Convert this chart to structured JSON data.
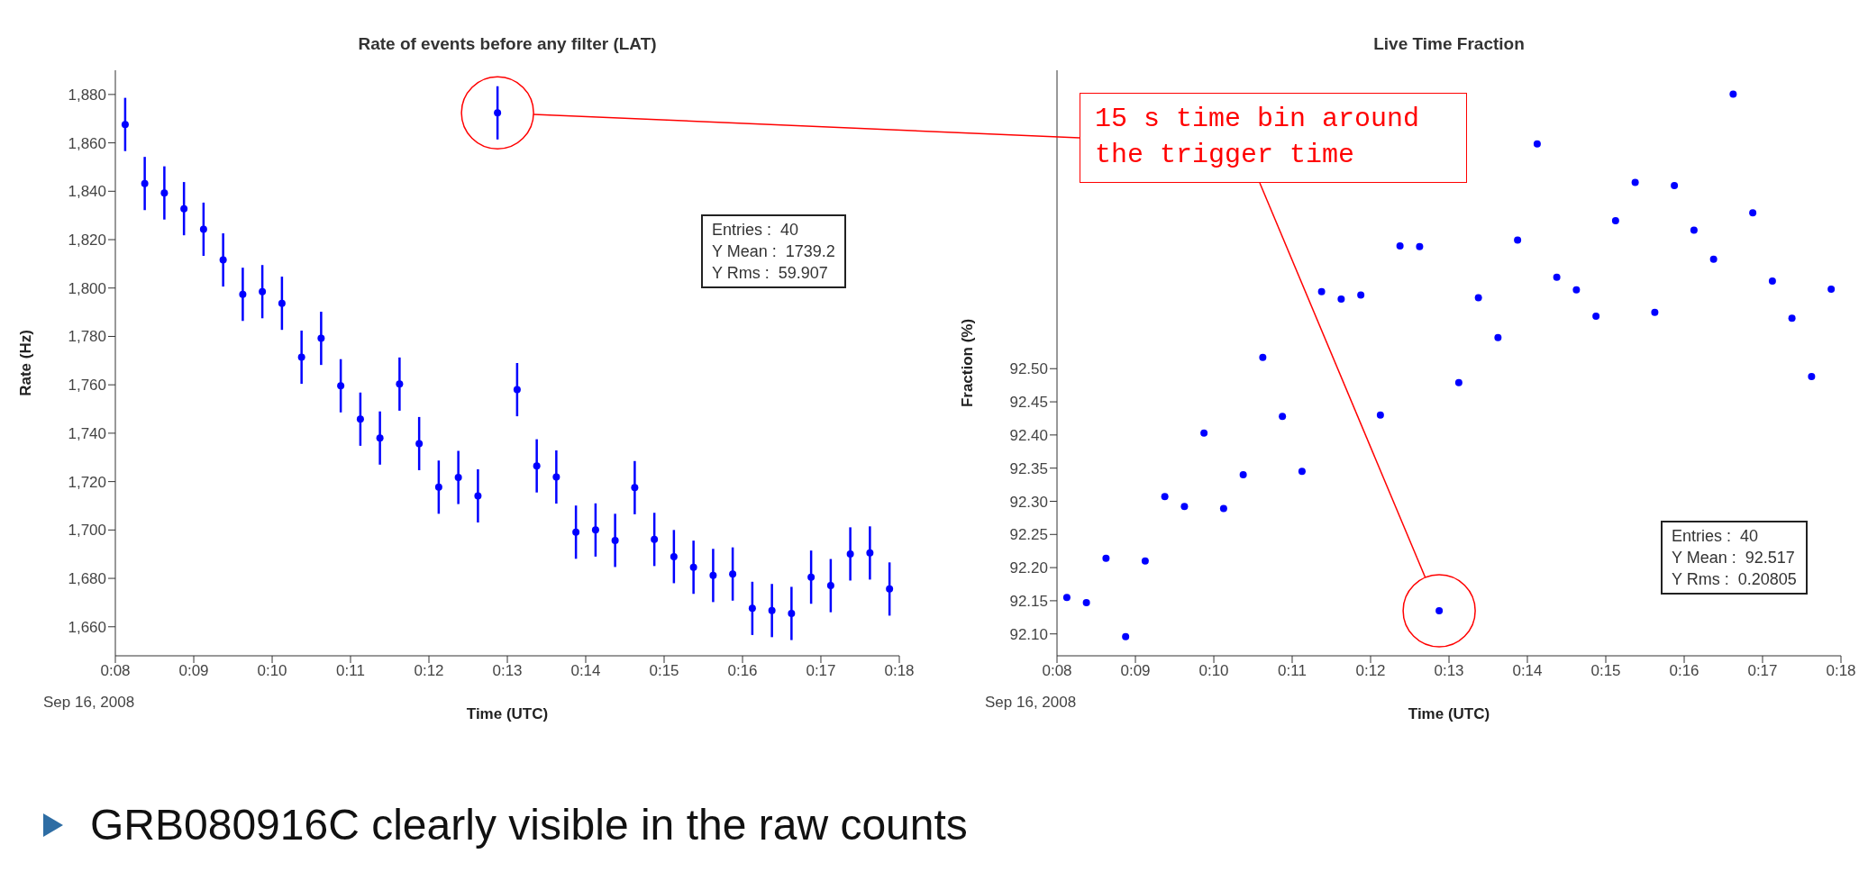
{
  "chart_data": [
    {
      "type": "scatter",
      "title": "Rate of events before any filter (LAT)",
      "xlabel": "Time (UTC)",
      "ylabel": "Rate (Hz)",
      "marker": "circle",
      "x": [
        0.13542,
        0.13958,
        0.14375,
        0.14792,
        0.15208,
        0.15625,
        0.16042,
        0.16458,
        0.16875,
        0.17292,
        0.17708,
        0.18125,
        0.18542,
        0.18958,
        0.19375,
        0.19792,
        0.20208,
        0.20625,
        0.21042,
        0.21458,
        0.21875,
        0.22292,
        0.22708,
        0.23125,
        0.23542,
        0.23958,
        0.24375,
        0.24792,
        0.25208,
        0.25625,
        0.26042,
        0.26458,
        0.26875,
        0.27292,
        0.27708,
        0.28125,
        0.28542,
        0.28958,
        0.29375,
        0.29792
      ],
      "series": [
        {
          "color": "#0000ff",
          "values": [
            1867.6,
            1843.2,
            1839.3,
            1832.8,
            1824.3,
            1811.6,
            1797.4,
            1798.5,
            1793.7,
            1771.4,
            1779.2,
            1759.6,
            1745.8,
            1738.0,
            1760.3,
            1735.7,
            1717.7,
            1721.7,
            1714.1,
            1872.4,
            1758.0,
            1726.5,
            1721.9,
            1699.1,
            1700.0,
            1695.7,
            1717.5,
            1696.1,
            1689.0,
            1684.6,
            1681.2,
            1681.8,
            1667.6,
            1666.7,
            1665.5,
            1680.5,
            1677.0,
            1690.1,
            1690.5,
            1675.6
          ],
          "errors": [
            11,
            11,
            11,
            11,
            11,
            11,
            11,
            11,
            11,
            11,
            11,
            11,
            11,
            11,
            11,
            11,
            11,
            11,
            11,
            11,
            11,
            11,
            11,
            11,
            11,
            11,
            11,
            11,
            11,
            11,
            11,
            11,
            11,
            11,
            11,
            11,
            11,
            11,
            11,
            11
          ]
        }
      ],
      "xlim": [
        0.13333,
        0.3
      ],
      "xticks": [
        {
          "value": 0.13333,
          "label": "0:08"
        },
        {
          "value": 0.15,
          "label": "0:09"
        },
        {
          "value": 0.16667,
          "label": "0:10"
        },
        {
          "value": 0.18333,
          "label": "0:11"
        },
        {
          "value": 0.2,
          "label": "0:12"
        },
        {
          "value": 0.21667,
          "label": "0:13"
        },
        {
          "value": 0.23333,
          "label": "0:14"
        },
        {
          "value": 0.25,
          "label": "0:15"
        },
        {
          "value": 0.26667,
          "label": "0:16"
        },
        {
          "value": 0.28333,
          "label": "0:17"
        },
        {
          "value": 0.3,
          "label": "0:18"
        }
      ],
      "ylim": [
        1648,
        1890
      ],
      "yticks": [
        {
          "value": 1660,
          "label": "1,660"
        },
        {
          "value": 1680,
          "label": "1,680"
        },
        {
          "value": 1700,
          "label": "1,700"
        },
        {
          "value": 1720,
          "label": "1,720"
        },
        {
          "value": 1740,
          "label": "1,740"
        },
        {
          "value": 1760,
          "label": "1,760"
        },
        {
          "value": 1780,
          "label": "1,780"
        },
        {
          "value": 1800,
          "label": "1,800"
        },
        {
          "value": 1820,
          "label": "1,820"
        },
        {
          "value": 1840,
          "label": "1,840"
        },
        {
          "value": 1860,
          "label": "1,860"
        },
        {
          "value": 1880,
          "label": "1,880"
        }
      ],
      "annotations": [
        "Entries :  40",
        "Y Mean :  1739.2",
        "Y Rms :  59.907",
        "Sep 16, 2008",
        "15 s time bin around the trigger time"
      ]
    },
    {
      "type": "scatter",
      "title": "Live Time Fraction",
      "xlabel": "Time (UTC)",
      "ylabel": "Fraction (%)",
      "marker": "circle",
      "x": [
        0.13542,
        0.13958,
        0.14375,
        0.14792,
        0.15208,
        0.15625,
        0.16042,
        0.16458,
        0.16875,
        0.17292,
        0.17708,
        0.18125,
        0.18542,
        0.18958,
        0.19375,
        0.19792,
        0.20208,
        0.20625,
        0.21042,
        0.21458,
        0.21875,
        0.22292,
        0.22708,
        0.23125,
        0.23542,
        0.23958,
        0.24375,
        0.24792,
        0.25208,
        0.25625,
        0.26042,
        0.26458,
        0.26875,
        0.27292,
        0.27708,
        0.28125,
        0.28542,
        0.28958,
        0.29375,
        0.29792
      ],
      "series": [
        {
          "color": "#0000ff",
          "values": [
            92.155,
            92.147,
            92.214,
            92.096,
            92.21,
            92.307,
            92.292,
            92.403,
            92.289,
            92.34,
            92.517,
            92.428,
            92.345,
            92.616,
            92.605,
            92.611,
            92.43,
            92.685,
            92.684,
            92.135,
            92.479,
            92.607,
            92.547,
            92.694,
            92.839,
            92.638,
            92.619,
            92.579,
            92.723,
            92.781,
            92.585,
            92.776,
            92.709,
            92.665,
            92.914,
            92.735,
            92.632,
            92.576,
            92.488,
            92.62
          ]
        }
      ],
      "xlim": [
        0.13333,
        0.3
      ],
      "xticks": [
        {
          "value": 0.13333,
          "label": "0:08"
        },
        {
          "value": 0.15,
          "label": "0:09"
        },
        {
          "value": 0.16667,
          "label": "0:10"
        },
        {
          "value": 0.18333,
          "label": "0:11"
        },
        {
          "value": 0.2,
          "label": "0:12"
        },
        {
          "value": 0.21667,
          "label": "0:13"
        },
        {
          "value": 0.23333,
          "label": "0:14"
        },
        {
          "value": 0.25,
          "label": "0:15"
        },
        {
          "value": 0.26667,
          "label": "0:16"
        },
        {
          "value": 0.28333,
          "label": "0:17"
        },
        {
          "value": 0.3,
          "label": "0:18"
        }
      ],
      "ylim": [
        92.067,
        92.95
      ],
      "yticks": [
        {
          "value": 92.1,
          "label": "92.10"
        },
        {
          "value": 92.15,
          "label": "92.15"
        },
        {
          "value": 92.2,
          "label": "92.20"
        },
        {
          "value": 92.25,
          "label": "92.25"
        },
        {
          "value": 92.3,
          "label": "92.30"
        },
        {
          "value": 92.35,
          "label": "92.35"
        },
        {
          "value": 92.4,
          "label": "92.40"
        },
        {
          "value": 92.45,
          "label": "92.45"
        },
        {
          "value": 92.5,
          "label": "92.50"
        }
      ],
      "annotations": [
        "Entries :  40",
        "Y Mean :  92.517",
        "Y Rms :  0.20805",
        "Sep 16, 2008",
        "GRB080916C clearly visible in the raw counts"
      ]
    }
  ]
}
